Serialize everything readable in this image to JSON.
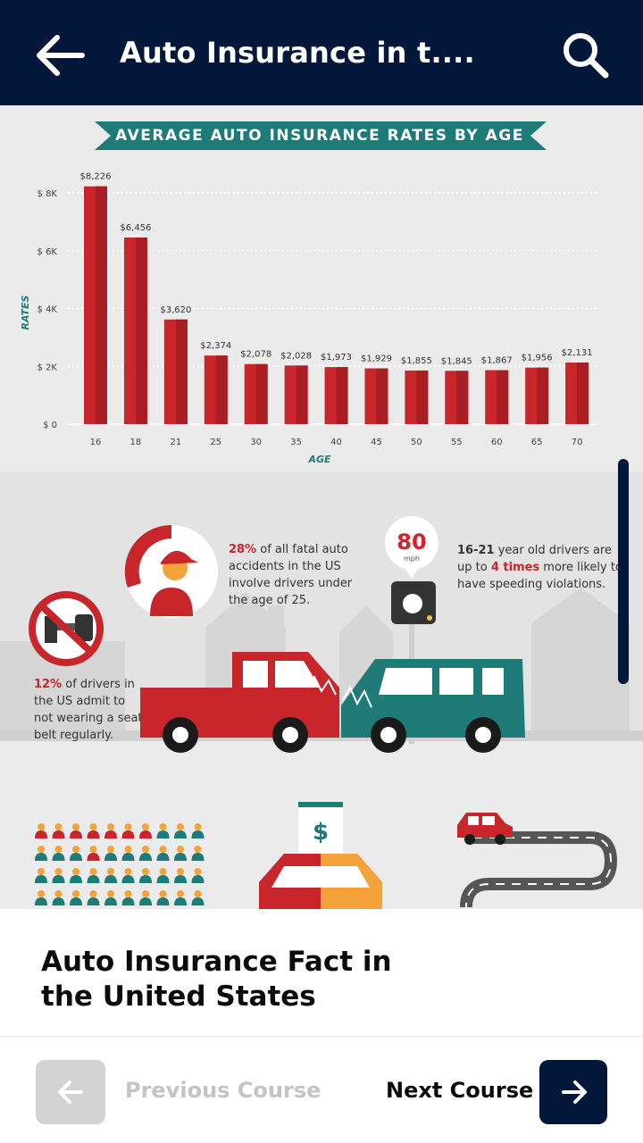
{
  "header": {
    "title": "Auto Insurance in t....",
    "back_icon": "arrow-left-icon",
    "search_icon": "search-icon"
  },
  "infographic": {
    "banner": "AVERAGE AUTO INSURANCE RATES BY AGE",
    "fact_fatal_pct": "28%",
    "fact_fatal_text": [
      " of all fatal auto",
      "accidents in the US",
      "involve drivers under",
      "the age of 25."
    ],
    "fact_speed_bold": "16-21",
    "fact_speed_text_1": " year old drivers are",
    "fact_speed_text_2a": "up to ",
    "fact_speed_highlight": "4 times",
    "fact_speed_text_2b": " more likely to",
    "fact_speed_text_3": "have speeding violations.",
    "fact_seatbelt_pct": "12%",
    "fact_seatbelt_text": [
      " of drivers in",
      "the US admit to",
      "not wearing a seat",
      "belt regularly."
    ],
    "speed_value": "80",
    "speed_unit": "mph",
    "dollar_sign": "$"
  },
  "chart_data": {
    "type": "bar",
    "title": "AVERAGE AUTO INSURANCE RATES BY AGE",
    "xlabel": "AGE",
    "ylabel": "RATES",
    "categories": [
      "16",
      "18",
      "21",
      "25",
      "30",
      "35",
      "40",
      "45",
      "50",
      "55",
      "60",
      "65",
      "70"
    ],
    "values": [
      8226,
      6456,
      3620,
      2374,
      2078,
      2028,
      1973,
      1929,
      1855,
      1845,
      1867,
      1956,
      2131
    ],
    "value_labels": [
      "$8,226",
      "$6,456",
      "$3,620",
      "$2,374",
      "$2,078",
      "$2,028",
      "$1,973",
      "$1,929",
      "$1,855",
      "$1,845",
      "$1,867",
      "$1,956",
      "$2,131"
    ],
    "ylim": [
      0,
      8000
    ],
    "yticks": [
      0,
      2000,
      4000,
      6000,
      8000
    ],
    "ytick_labels": [
      "$ 0",
      "$ 2K",
      "$ 4K",
      "$ 6K",
      "$ 8K"
    ],
    "grid": true,
    "bar_color": "#c8262b",
    "accent_color": "#1e7b78"
  },
  "caption": {
    "title": "Auto Insurance Fact in the United States"
  },
  "footer": {
    "prev_label": "Previous Course",
    "next_label": "Next Course",
    "prev_icon": "arrow-left-icon",
    "next_icon": "arrow-right-icon"
  },
  "colors": {
    "navy": "#02173a",
    "red": "#c8262b",
    "teal": "#1e7b78"
  }
}
